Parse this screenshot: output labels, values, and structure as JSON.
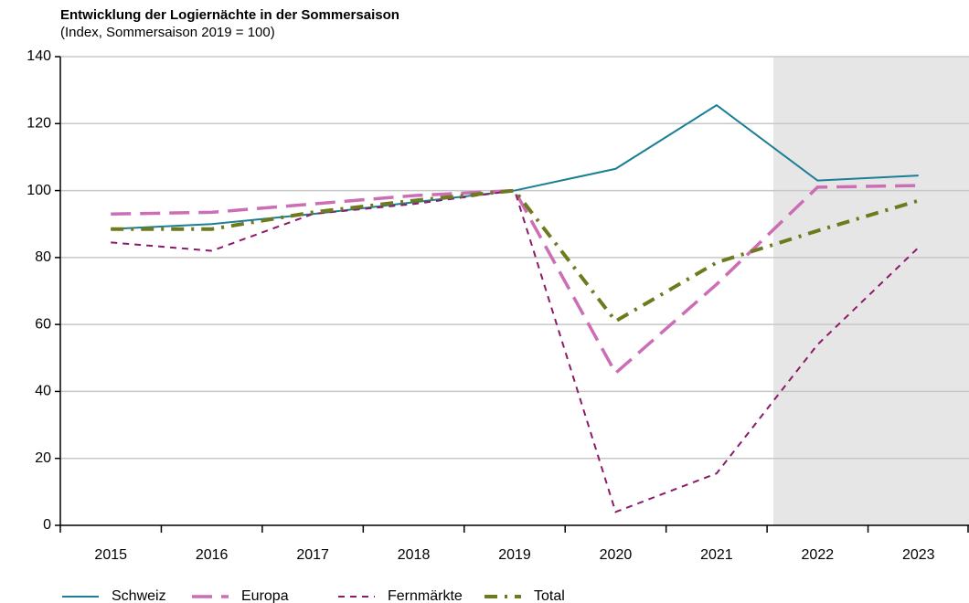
{
  "chart_data": {
    "type": "line",
    "title": "Entwicklung der Logiernächte in der Sommersaison",
    "subtitle": "(Index, Sommersaison 2019 = 100)",
    "categories": [
      "2015",
      "2016",
      "2017",
      "2018",
      "2019",
      "2020",
      "2021",
      "2022",
      "2023"
    ],
    "series": [
      {
        "name": "Schweiz",
        "color": "#1a7f96",
        "style": "solid",
        "values": [
          88.5,
          90,
          93,
          96.5,
          100,
          106.5,
          125.5,
          103,
          104.5
        ]
      },
      {
        "name": "Europa",
        "color": "#cc6eb5",
        "style": "dashed",
        "values": [
          93,
          93.5,
          96,
          98.5,
          100,
          45.5,
          72,
          101,
          101.5
        ]
      },
      {
        "name": "Fernmärkte",
        "color": "#8b1a6b",
        "style": "dotted",
        "values": [
          84.5,
          82,
          93,
          96,
          100,
          4,
          15.5,
          54,
          83
        ]
      },
      {
        "name": "Total",
        "color": "#6e7a1e",
        "style": "dashdot",
        "values": [
          88.5,
          88.5,
          93.5,
          97,
          100,
          61,
          78.5,
          88,
          97
        ]
      }
    ],
    "ylim": [
      0,
      140
    ],
    "yticks": [
      0,
      20,
      40,
      60,
      80,
      100,
      120,
      140
    ],
    "grid": true,
    "legend": "bottom"
  }
}
